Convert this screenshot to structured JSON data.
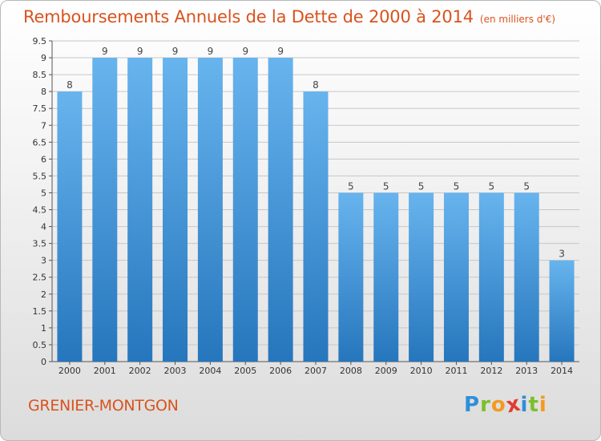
{
  "title": "Remboursements Annuels de la Dette de 2000 à 2014",
  "subtitle": "(en milliers d'€)",
  "commune": "GRENIER-MONTGON",
  "logo": {
    "letters": [
      "P",
      "r",
      "o",
      "x",
      "i",
      "t",
      "i"
    ],
    "colors": [
      "#2f8fd8",
      "#7cbf2a",
      "#f39a1e",
      "#e03a2e",
      "#2f8fd8",
      "#7cbf2a",
      "#f39a1e"
    ]
  },
  "colors": {
    "bar_light": "#63b0ec",
    "bar_dark": "#2778bf",
    "accent": "#d9531e",
    "grid": "#c7c7c7"
  },
  "chart_data": {
    "type": "bar",
    "categories": [
      "2000",
      "2001",
      "2002",
      "2003",
      "2004",
      "2005",
      "2006",
      "2007",
      "2008",
      "2009",
      "2010",
      "2011",
      "2012",
      "2013",
      "2014"
    ],
    "values": [
      8,
      9,
      9,
      9,
      9,
      9,
      9,
      8,
      5,
      5,
      5,
      5,
      5,
      5,
      3
    ],
    "data_labels": [
      "8",
      "9",
      "9",
      "9",
      "9",
      "9",
      "9",
      "8",
      "5",
      "5",
      "5",
      "5",
      "5",
      "5",
      "3"
    ],
    "yticks": [
      "0",
      "0.5",
      "1",
      "1.5",
      "2",
      "2.5",
      "3",
      "3.5",
      "4",
      "4.5",
      "5",
      "5.5",
      "6",
      "6.5",
      "7",
      "7.5",
      "8",
      "8.5",
      "9",
      "9.5"
    ],
    "ylim": [
      0,
      9.5
    ],
    "grid": true,
    "xlabel": "",
    "ylabel": ""
  }
}
